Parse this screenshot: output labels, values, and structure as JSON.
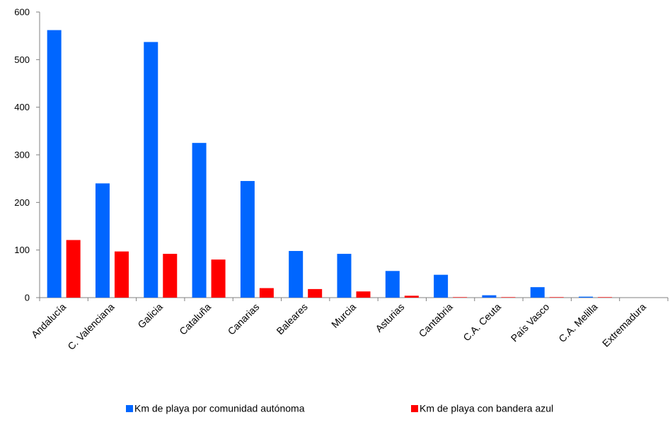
{
  "chart_data": {
    "type": "bar",
    "title": "",
    "xlabel": "",
    "ylabel": "",
    "ylim": [
      0,
      600
    ],
    "yticks": [
      0,
      100,
      200,
      300,
      400,
      500,
      600
    ],
    "grid": false,
    "legend_position": "bottom",
    "categories": [
      "Andalucía",
      "C. Valenciana",
      "Galicia",
      "Cataluña",
      "Canarias",
      "Baleares",
      "Murcia",
      "Asturias",
      "Cantabria",
      "C.A. Ceuta",
      "País Vasco",
      "C.A. Melilla",
      "Extremadura"
    ],
    "series": [
      {
        "name": "Km de playa por comunidad autónoma",
        "color": "#0066FF",
        "values": [
          562,
          240,
          537,
          325,
          245,
          98,
          92,
          56,
          48,
          5,
          22,
          2,
          0
        ]
      },
      {
        "name": "Km de playa con bandera azul",
        "color": "#FF0000",
        "values": [
          121,
          97,
          92,
          80,
          20,
          18,
          13,
          4,
          1,
          1,
          1,
          1,
          0
        ]
      }
    ]
  }
}
